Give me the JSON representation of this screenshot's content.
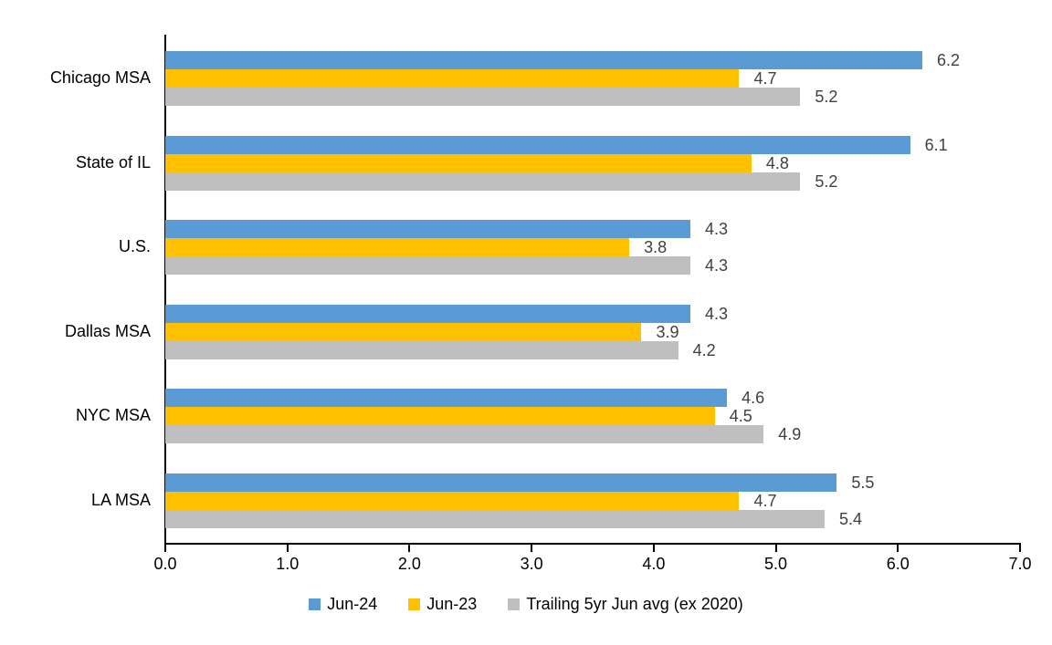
{
  "chart_data": {
    "type": "bar",
    "orientation": "horizontal",
    "title": "",
    "xlabel": "",
    "ylabel": "",
    "categories": [
      "Chicago MSA",
      "State of IL",
      "U.S.",
      "Dallas MSA",
      "NYC MSA",
      "LA MSA"
    ],
    "series": [
      {
        "name": "Jun-24",
        "color": "#5B9BD5",
        "values": [
          6.2,
          6.1,
          4.3,
          4.3,
          4.6,
          5.5
        ]
      },
      {
        "name": "Jun-23",
        "color": "#FFC000",
        "values": [
          4.7,
          4.8,
          3.8,
          3.9,
          4.5,
          4.7
        ]
      },
      {
        "name": "Trailing 5yr Jun avg (ex 2020)",
        "color": "#BFBFBF",
        "values": [
          5.2,
          5.2,
          4.3,
          4.2,
          4.9,
          5.4
        ]
      }
    ],
    "data_labels": [
      [
        "6.2",
        "4.7",
        "5.2"
      ],
      [
        "6.1",
        "4.8",
        "5.2"
      ],
      [
        "4.3",
        "3.8",
        "4.3"
      ],
      [
        "4.3",
        "3.9",
        "4.2"
      ],
      [
        "4.6",
        "4.5",
        "4.9"
      ],
      [
        "5.5",
        "4.7",
        "5.4"
      ]
    ],
    "xlim": [
      0,
      7
    ],
    "x_ticks": [
      "0.0",
      "1.0",
      "2.0",
      "3.0",
      "4.0",
      "5.0",
      "6.0",
      "7.0"
    ],
    "grid": false,
    "legend_position": "bottom"
  },
  "style": {
    "data_label_color": "#404040",
    "axis_color": "#000000",
    "text_color": "#000000"
  }
}
